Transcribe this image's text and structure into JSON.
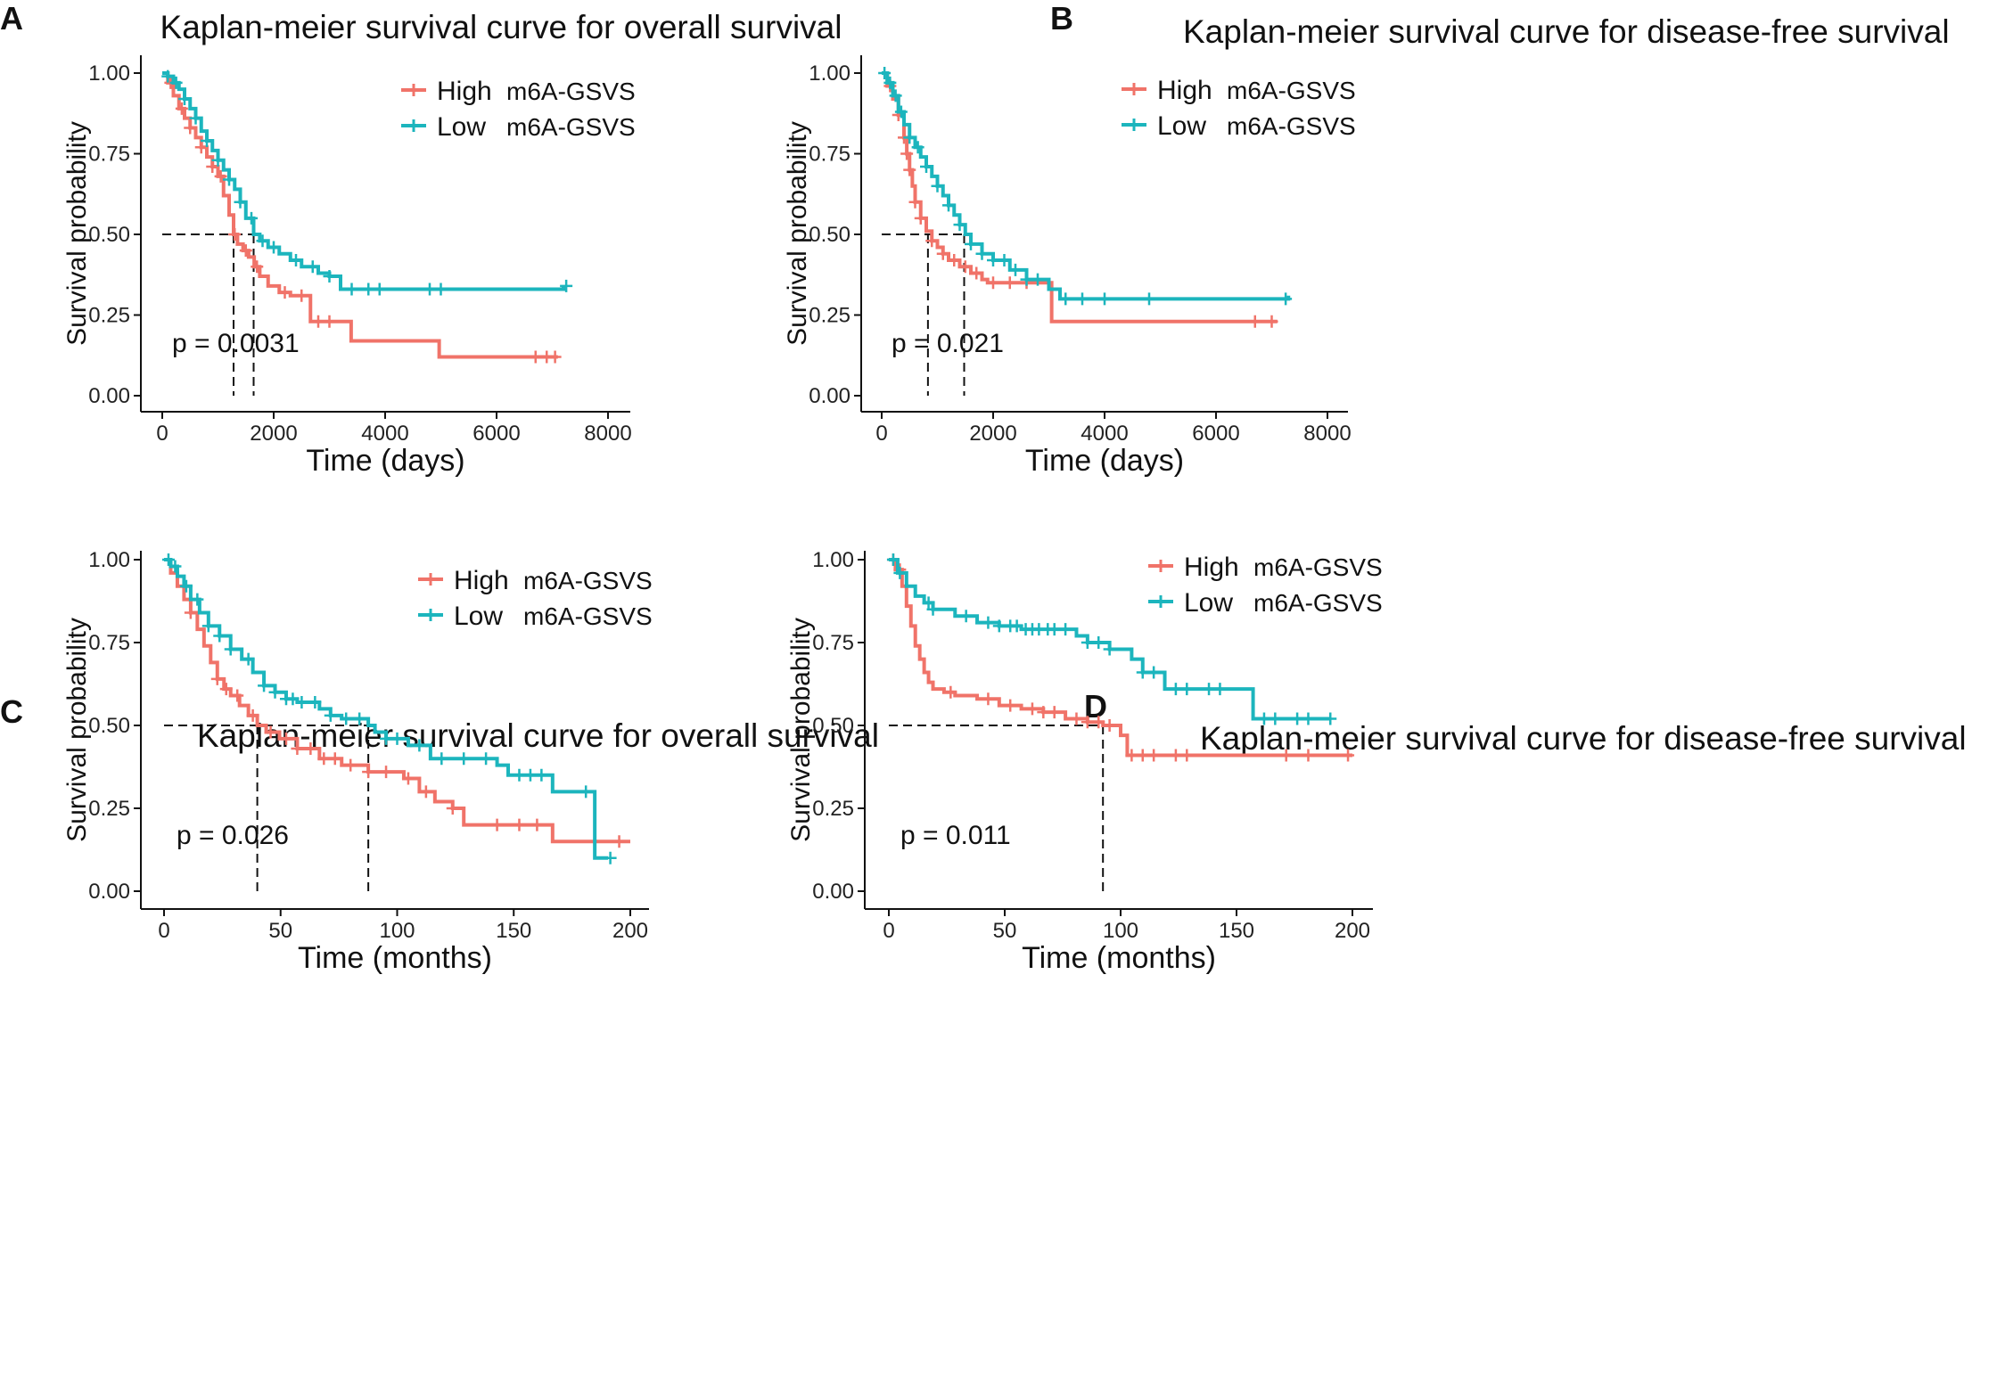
{
  "chart_data": [
    {
      "panel": "A",
      "type": "line",
      "title": "Kaplan-meier survival curve for overall survival",
      "xlabel": "Time (days)",
      "ylabel": "Survival probability",
      "xlim": [
        0,
        8000
      ],
      "ylim": [
        0,
        1
      ],
      "xticks": [
        "0",
        "2000",
        "4000",
        "6000",
        "8000"
      ],
      "yticks": [
        "0.00",
        "0.25",
        "0.50",
        "0.75",
        "1.00"
      ],
      "pvalue": "p = 0.0031",
      "legend": [
        "High",
        "Low"
      ],
      "legend_suffix": "m6A-GSVS",
      "median_lines": [
        1280,
        1640
      ],
      "series": [
        {
          "name": "High m6A-GSVS",
          "color": "#f07369",
          "x": [
            0,
            100,
            200,
            300,
            400,
            500,
            600,
            700,
            800,
            900,
            1000,
            1100,
            1200,
            1280,
            1350,
            1450,
            1550,
            1650,
            1750,
            1900,
            2100,
            2300,
            2660,
            2900,
            3390,
            4100,
            4970,
            5600,
            6500,
            7100
          ],
          "y": [
            1.0,
            0.97,
            0.93,
            0.89,
            0.86,
            0.83,
            0.8,
            0.77,
            0.74,
            0.71,
            0.68,
            0.62,
            0.56,
            0.5,
            0.47,
            0.45,
            0.43,
            0.4,
            0.37,
            0.34,
            0.32,
            0.31,
            0.23,
            0.23,
            0.17,
            0.17,
            0.12,
            0.12,
            0.12,
            0.12
          ],
          "censor": [
            150,
            350,
            500,
            700,
            900,
            1050,
            1300,
            1500,
            1700,
            2200,
            2500,
            2800,
            3000,
            6700,
            6900,
            7050
          ]
        },
        {
          "name": "Low m6A-GSVS",
          "color": "#1cb5bd",
          "x": [
            0,
            100,
            200,
            300,
            400,
            500,
            600,
            700,
            800,
            900,
            1000,
            1100,
            1200,
            1300,
            1400,
            1500,
            1640,
            1750,
            1900,
            2100,
            2300,
            2500,
            2800,
            3000,
            3200,
            3600,
            4000,
            5000,
            6000,
            7200
          ],
          "y": [
            1.0,
            0.99,
            0.97,
            0.95,
            0.92,
            0.89,
            0.86,
            0.82,
            0.79,
            0.76,
            0.73,
            0.7,
            0.67,
            0.64,
            0.6,
            0.55,
            0.5,
            0.48,
            0.46,
            0.44,
            0.42,
            0.4,
            0.38,
            0.37,
            0.33,
            0.33,
            0.33,
            0.33,
            0.33,
            0.34
          ],
          "censor": [
            100,
            250,
            400,
            600,
            800,
            1000,
            1200,
            1400,
            1600,
            1800,
            2000,
            2400,
            2700,
            3000,
            3400,
            3700,
            3900,
            4800,
            5000,
            7250
          ]
        }
      ]
    },
    {
      "panel": "B",
      "type": "line",
      "title": "Kaplan-meier survival curve for disease-free survival",
      "xlabel": "Time (days)",
      "ylabel": "Survival probability",
      "xlim": [
        0,
        8000
      ],
      "ylim": [
        0,
        1
      ],
      "xticks": [
        "0",
        "2000",
        "4000",
        "6000",
        "8000"
      ],
      "yticks": [
        "0.00",
        "0.25",
        "0.50",
        "0.75",
        "1.00"
      ],
      "pvalue": "p = 0.021",
      "legend": [
        "High",
        "Low"
      ],
      "legend_suffix": "m6A-GSVS",
      "median_lines": [
        830,
        1480
      ],
      "series": [
        {
          "name": "High m6A-GSVS",
          "color": "#f07369",
          "x": [
            0,
            100,
            200,
            300,
            400,
            450,
            500,
            550,
            600,
            700,
            800,
            900,
            1000,
            1100,
            1200,
            1400,
            1600,
            1800,
            1900,
            2200,
            2700,
            3050,
            3500,
            5000,
            6500,
            7100
          ],
          "y": [
            1.0,
            0.96,
            0.92,
            0.87,
            0.8,
            0.75,
            0.7,
            0.65,
            0.6,
            0.55,
            0.51,
            0.48,
            0.46,
            0.44,
            0.42,
            0.4,
            0.38,
            0.36,
            0.35,
            0.35,
            0.35,
            0.23,
            0.23,
            0.23,
            0.23,
            0.23
          ],
          "censor": [
            150,
            300,
            400,
            450,
            500,
            600,
            700,
            900,
            1100,
            1300,
            1500,
            1700,
            2000,
            2300,
            2600,
            6700,
            7000
          ]
        },
        {
          "name": "Low m6A-GSVS",
          "color": "#1cb5bd",
          "x": [
            0,
            100,
            200,
            300,
            400,
            500,
            600,
            700,
            800,
            900,
            1000,
            1100,
            1200,
            1300,
            1400,
            1500,
            1600,
            1800,
            2000,
            2300,
            2600,
            3000,
            3200,
            4000,
            5000,
            7300
          ],
          "y": [
            1.0,
            0.97,
            0.93,
            0.88,
            0.84,
            0.8,
            0.77,
            0.74,
            0.71,
            0.68,
            0.65,
            0.62,
            0.59,
            0.56,
            0.53,
            0.5,
            0.47,
            0.44,
            0.42,
            0.39,
            0.36,
            0.33,
            0.3,
            0.3,
            0.3,
            0.31
          ],
          "censor": [
            50,
            150,
            250,
            350,
            500,
            650,
            800,
            1000,
            1200,
            1400,
            1600,
            1800,
            2000,
            2200,
            2400,
            2600,
            2800,
            3300,
            3600,
            4000,
            4800,
            7250
          ]
        }
      ]
    },
    {
      "panel": "C",
      "type": "line",
      "title": "Kaplan-meier survival curve for overall survival",
      "xlabel": "Time (months)",
      "ylabel": "Survival probability",
      "xlim": [
        0,
        210
      ],
      "ylim": [
        0,
        1
      ],
      "xticks": [
        "0",
        "50",
        "100",
        "150",
        "200"
      ],
      "yticks": [
        "0.00",
        "0.25",
        "0.50",
        "0.75",
        "1.00"
      ],
      "pvalue": "p = 0.026",
      "legend": [
        "High",
        "Low"
      ],
      "legend_suffix": "m6A-GSVS",
      "median_lines": [
        42,
        92
      ],
      "series": [
        {
          "name": "High m6A-GSVS",
          "color": "#f07369",
          "x": [
            0,
            3,
            6,
            9,
            12,
            15,
            18,
            21,
            24,
            27,
            30,
            34,
            38,
            42,
            46,
            52,
            60,
            70,
            80,
            92,
            100,
            108,
            115,
            122,
            130,
            135,
            145,
            160,
            175,
            185,
            195,
            210
          ],
          "y": [
            1.0,
            0.96,
            0.92,
            0.88,
            0.84,
            0.79,
            0.74,
            0.69,
            0.64,
            0.61,
            0.59,
            0.56,
            0.53,
            0.5,
            0.48,
            0.46,
            0.43,
            0.4,
            0.38,
            0.36,
            0.36,
            0.34,
            0.3,
            0.27,
            0.25,
            0.2,
            0.2,
            0.2,
            0.15,
            0.15,
            0.15,
            0.15
          ],
          "censor": [
            12,
            24,
            28,
            33,
            40,
            48,
            55,
            60,
            66,
            72,
            77,
            84,
            92,
            100,
            110,
            118,
            130,
            150,
            160,
            168,
            205
          ]
        },
        {
          "name": "Low m6A-GSVS",
          "color": "#1cb5bd",
          "x": [
            0,
            3,
            6,
            9,
            12,
            16,
            20,
            25,
            30,
            35,
            40,
            45,
            50,
            55,
            60,
            70,
            75,
            80,
            92,
            95,
            100,
            110,
            120,
            130,
            150,
            155,
            175,
            190,
            194,
            200
          ],
          "y": [
            1.0,
            0.98,
            0.95,
            0.92,
            0.88,
            0.84,
            0.8,
            0.77,
            0.73,
            0.7,
            0.66,
            0.62,
            0.6,
            0.58,
            0.57,
            0.55,
            0.53,
            0.52,
            0.5,
            0.48,
            0.46,
            0.44,
            0.4,
            0.4,
            0.38,
            0.35,
            0.3,
            0.3,
            0.1,
            0.1
          ],
          "censor": [
            2,
            5,
            10,
            15,
            20,
            25,
            30,
            38,
            45,
            50,
            55,
            58,
            62,
            68,
            75,
            82,
            88,
            100,
            105,
            115,
            125,
            135,
            145,
            160,
            165,
            170,
            190,
            201
          ]
        }
      ]
    },
    {
      "panel": "D",
      "type": "line",
      "title": "Kaplan-meier survival curve for disease-free survival",
      "xlabel": "Time (months)",
      "ylabel": "Survival probability",
      "xlim": [
        0,
        210
      ],
      "ylim": [
        0,
        1
      ],
      "xticks": [
        "0",
        "50",
        "100",
        "150",
        "200"
      ],
      "yticks": [
        "0.00",
        "0.25",
        "0.50",
        "0.75",
        "1.00"
      ],
      "pvalue": "p = 0.011",
      "legend": [
        "High",
        "Low"
      ],
      "legend_suffix": "m6A-GSVS",
      "median_lines": [
        97
      ],
      "series": [
        {
          "name": "High m6A-GSVS",
          "color": "#f07369",
          "x": [
            0,
            3,
            6,
            8,
            10,
            12,
            14,
            16,
            18,
            20,
            25,
            30,
            40,
            50,
            60,
            70,
            80,
            90,
            97,
            105,
            108,
            130,
            150,
            180,
            210
          ],
          "y": [
            1.0,
            0.97,
            0.92,
            0.86,
            0.8,
            0.74,
            0.7,
            0.66,
            0.63,
            0.61,
            0.6,
            0.59,
            0.58,
            0.56,
            0.55,
            0.54,
            0.52,
            0.51,
            0.5,
            0.47,
            0.41,
            0.41,
            0.41,
            0.41,
            0.41
          ],
          "censor": [
            2,
            5,
            28,
            45,
            55,
            65,
            70,
            75,
            85,
            90,
            95,
            100,
            110,
            115,
            120,
            130,
            135,
            180,
            190,
            208
          ]
        },
        {
          "name": "Low m6A-GSVS",
          "color": "#1cb5bd",
          "x": [
            0,
            4,
            8,
            12,
            16,
            20,
            30,
            40,
            50,
            60,
            70,
            80,
            85,
            90,
            100,
            105,
            110,
            115,
            125,
            140,
            150,
            160,
            165,
            180,
            200
          ],
          "y": [
            1.0,
            0.96,
            0.92,
            0.89,
            0.87,
            0.85,
            0.83,
            0.81,
            0.8,
            0.79,
            0.79,
            0.79,
            0.77,
            0.75,
            0.73,
            0.73,
            0.7,
            0.66,
            0.61,
            0.61,
            0.61,
            0.61,
            0.52,
            0.52,
            0.52
          ],
          "censor": [
            2,
            5,
            18,
            20,
            35,
            45,
            50,
            55,
            58,
            62,
            65,
            68,
            72,
            75,
            80,
            90,
            95,
            100,
            115,
            120,
            130,
            135,
            145,
            150,
            170,
            175,
            185,
            190,
            200
          ]
        }
      ]
    }
  ]
}
